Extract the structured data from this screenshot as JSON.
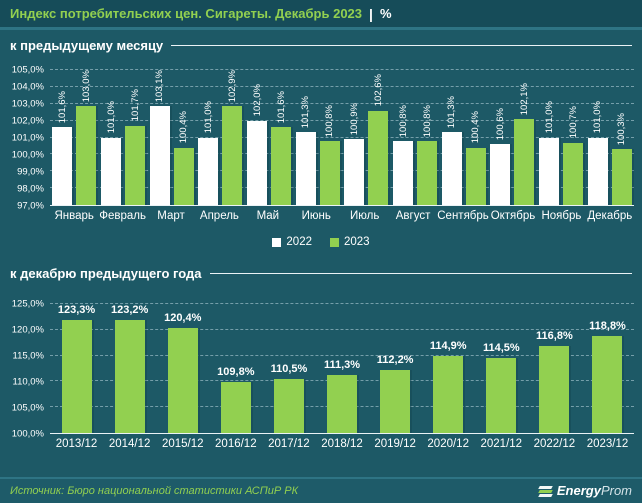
{
  "header": {
    "title_main": "Индекс потребительских цен. Сигареты. Декабрь 2023",
    "title_sep": "|",
    "title_suffix": "%"
  },
  "footer": {
    "source": "Источник: Бюро национальной статистики АСПиР РК",
    "logo_bold": "Energy",
    "logo_light": "Prom"
  },
  "colors": {
    "background": "#1D5966",
    "title_bar": "#164C59",
    "accent_green": "#92D050",
    "bar_white": "#FFFFFF",
    "grid": "#CDE6EE",
    "text": "#FFFFFF"
  },
  "chart_data": [
    {
      "type": "bar",
      "title": "к предыдущему месяцу",
      "categories": [
        "Январь",
        "Февраль",
        "Март",
        "Апрель",
        "Май",
        "Июнь",
        "Июль",
        "Август",
        "Сентябрь",
        "Октябрь",
        "Ноябрь",
        "Декабрь"
      ],
      "series": [
        {
          "name": "2022",
          "color": "#FFFFFF",
          "values": [
            101.6,
            101.0,
            103.1,
            101.0,
            102.0,
            101.3,
            100.9,
            100.8,
            101.3,
            100.6,
            101.0,
            101.0
          ],
          "labels": [
            "101,6%",
            "101,0%",
            "103,1%",
            "101,0%",
            "102,0%",
            "101,3%",
            "100,9%",
            "100,8%",
            "101,3%",
            "100,6%",
            "101,0%",
            "101,0%"
          ]
        },
        {
          "name": "2023",
          "color": "#92D050",
          "values": [
            103.0,
            101.7,
            100.4,
            102.9,
            101.6,
            100.8,
            102.6,
            100.8,
            100.4,
            102.1,
            100.7,
            100.3
          ],
          "labels": [
            "103,0%",
            "101,7%",
            "100,4%",
            "102,9%",
            "101,6%",
            "100,8%",
            "102,6%",
            "100,8%",
            "100,4%",
            "102,1%",
            "100,7%",
            "100,3%"
          ]
        }
      ],
      "ylim": [
        97,
        105
      ],
      "yticks": [
        {
          "value": 105,
          "label": "105,0%"
        },
        {
          "value": 104,
          "label": "104,0%"
        },
        {
          "value": 103,
          "label": "103,0%"
        },
        {
          "value": 102,
          "label": "102,0%"
        },
        {
          "value": 101,
          "label": "101,0%"
        },
        {
          "value": 100,
          "label": "100,0%"
        },
        {
          "value": 99,
          "label": "99,0%"
        },
        {
          "value": 98,
          "label": "98,0%"
        },
        {
          "value": 97,
          "label": "97,0%"
        }
      ],
      "grid": true,
      "value_label_rotation": "vertical",
      "legend_position": "bottom"
    },
    {
      "type": "bar",
      "title": "к декабрю предыдущего года",
      "categories": [
        "2013/12",
        "2014/12",
        "2015/12",
        "2016/12",
        "2017/12",
        "2018/12",
        "2019/12",
        "2020/12",
        "2021/12",
        "2022/12",
        "2023/12"
      ],
      "series": [
        {
          "name": "к декабрю предыдущего года",
          "color": "#92D050",
          "values": [
            123.3,
            123.2,
            120.4,
            109.8,
            110.5,
            111.3,
            112.2,
            114.9,
            114.5,
            116.8,
            118.8
          ],
          "labels": [
            "123,3%",
            "123,2%",
            "120,4%",
            "109,8%",
            "110,5%",
            "111,3%",
            "112,2%",
            "114,9%",
            "114,5%",
            "116,8%",
            "118,8%"
          ]
        }
      ],
      "ylim": [
        100,
        125
      ],
      "yticks": [
        {
          "value": 125,
          "label": "125,0%"
        },
        {
          "value": 120,
          "label": "120,0%"
        },
        {
          "value": 115,
          "label": "115,0%"
        },
        {
          "value": 110,
          "label": "110,0%"
        },
        {
          "value": 105,
          "label": "105,0%"
        },
        {
          "value": 100,
          "label": "100,0%"
        }
      ],
      "grid": true,
      "value_label_rotation": "horizontal",
      "legend_position": "none"
    }
  ]
}
